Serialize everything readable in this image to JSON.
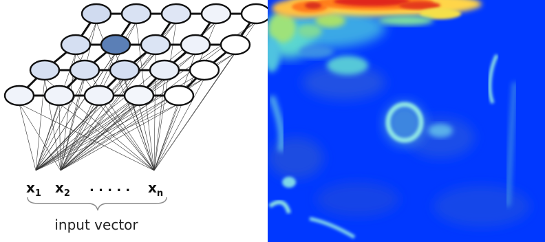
{
  "som_diagram": {
    "grid": {
      "rows": 4,
      "cols": 5,
      "node_levels": [
        [
          0.55,
          0.45,
          0.38,
          0.18,
          0.0
        ],
        [
          0.5,
          1.0,
          0.42,
          0.2,
          0.0
        ],
        [
          0.48,
          0.45,
          0.5,
          0.25,
          0.0
        ],
        [
          0.18,
          0.18,
          0.18,
          0.14,
          0.0
        ]
      ],
      "winner_node": {
        "row": 1,
        "col": 1
      }
    },
    "inputs": [
      {
        "base": "x",
        "sub": "1"
      },
      {
        "base": "x",
        "sub": "2"
      },
      {
        "base": "x",
        "sub": "n"
      }
    ],
    "ellipsis": ". . . . .",
    "caption": "input vector"
  },
  "heatmap": {
    "colormap": "jet",
    "background_level": 0.12,
    "features": [
      {
        "shape": "hot-band-top",
        "level": 0.92
      },
      {
        "shape": "warm-blob-top-left",
        "level": 0.55
      },
      {
        "shape": "cyan-ring-center",
        "level": 0.4
      },
      {
        "shape": "cyan-streak-right",
        "level": 0.38
      },
      {
        "shape": "cyan-streak-bottom-left",
        "level": 0.35
      },
      {
        "shape": "faint-patches",
        "level": 0.25
      }
    ]
  }
}
